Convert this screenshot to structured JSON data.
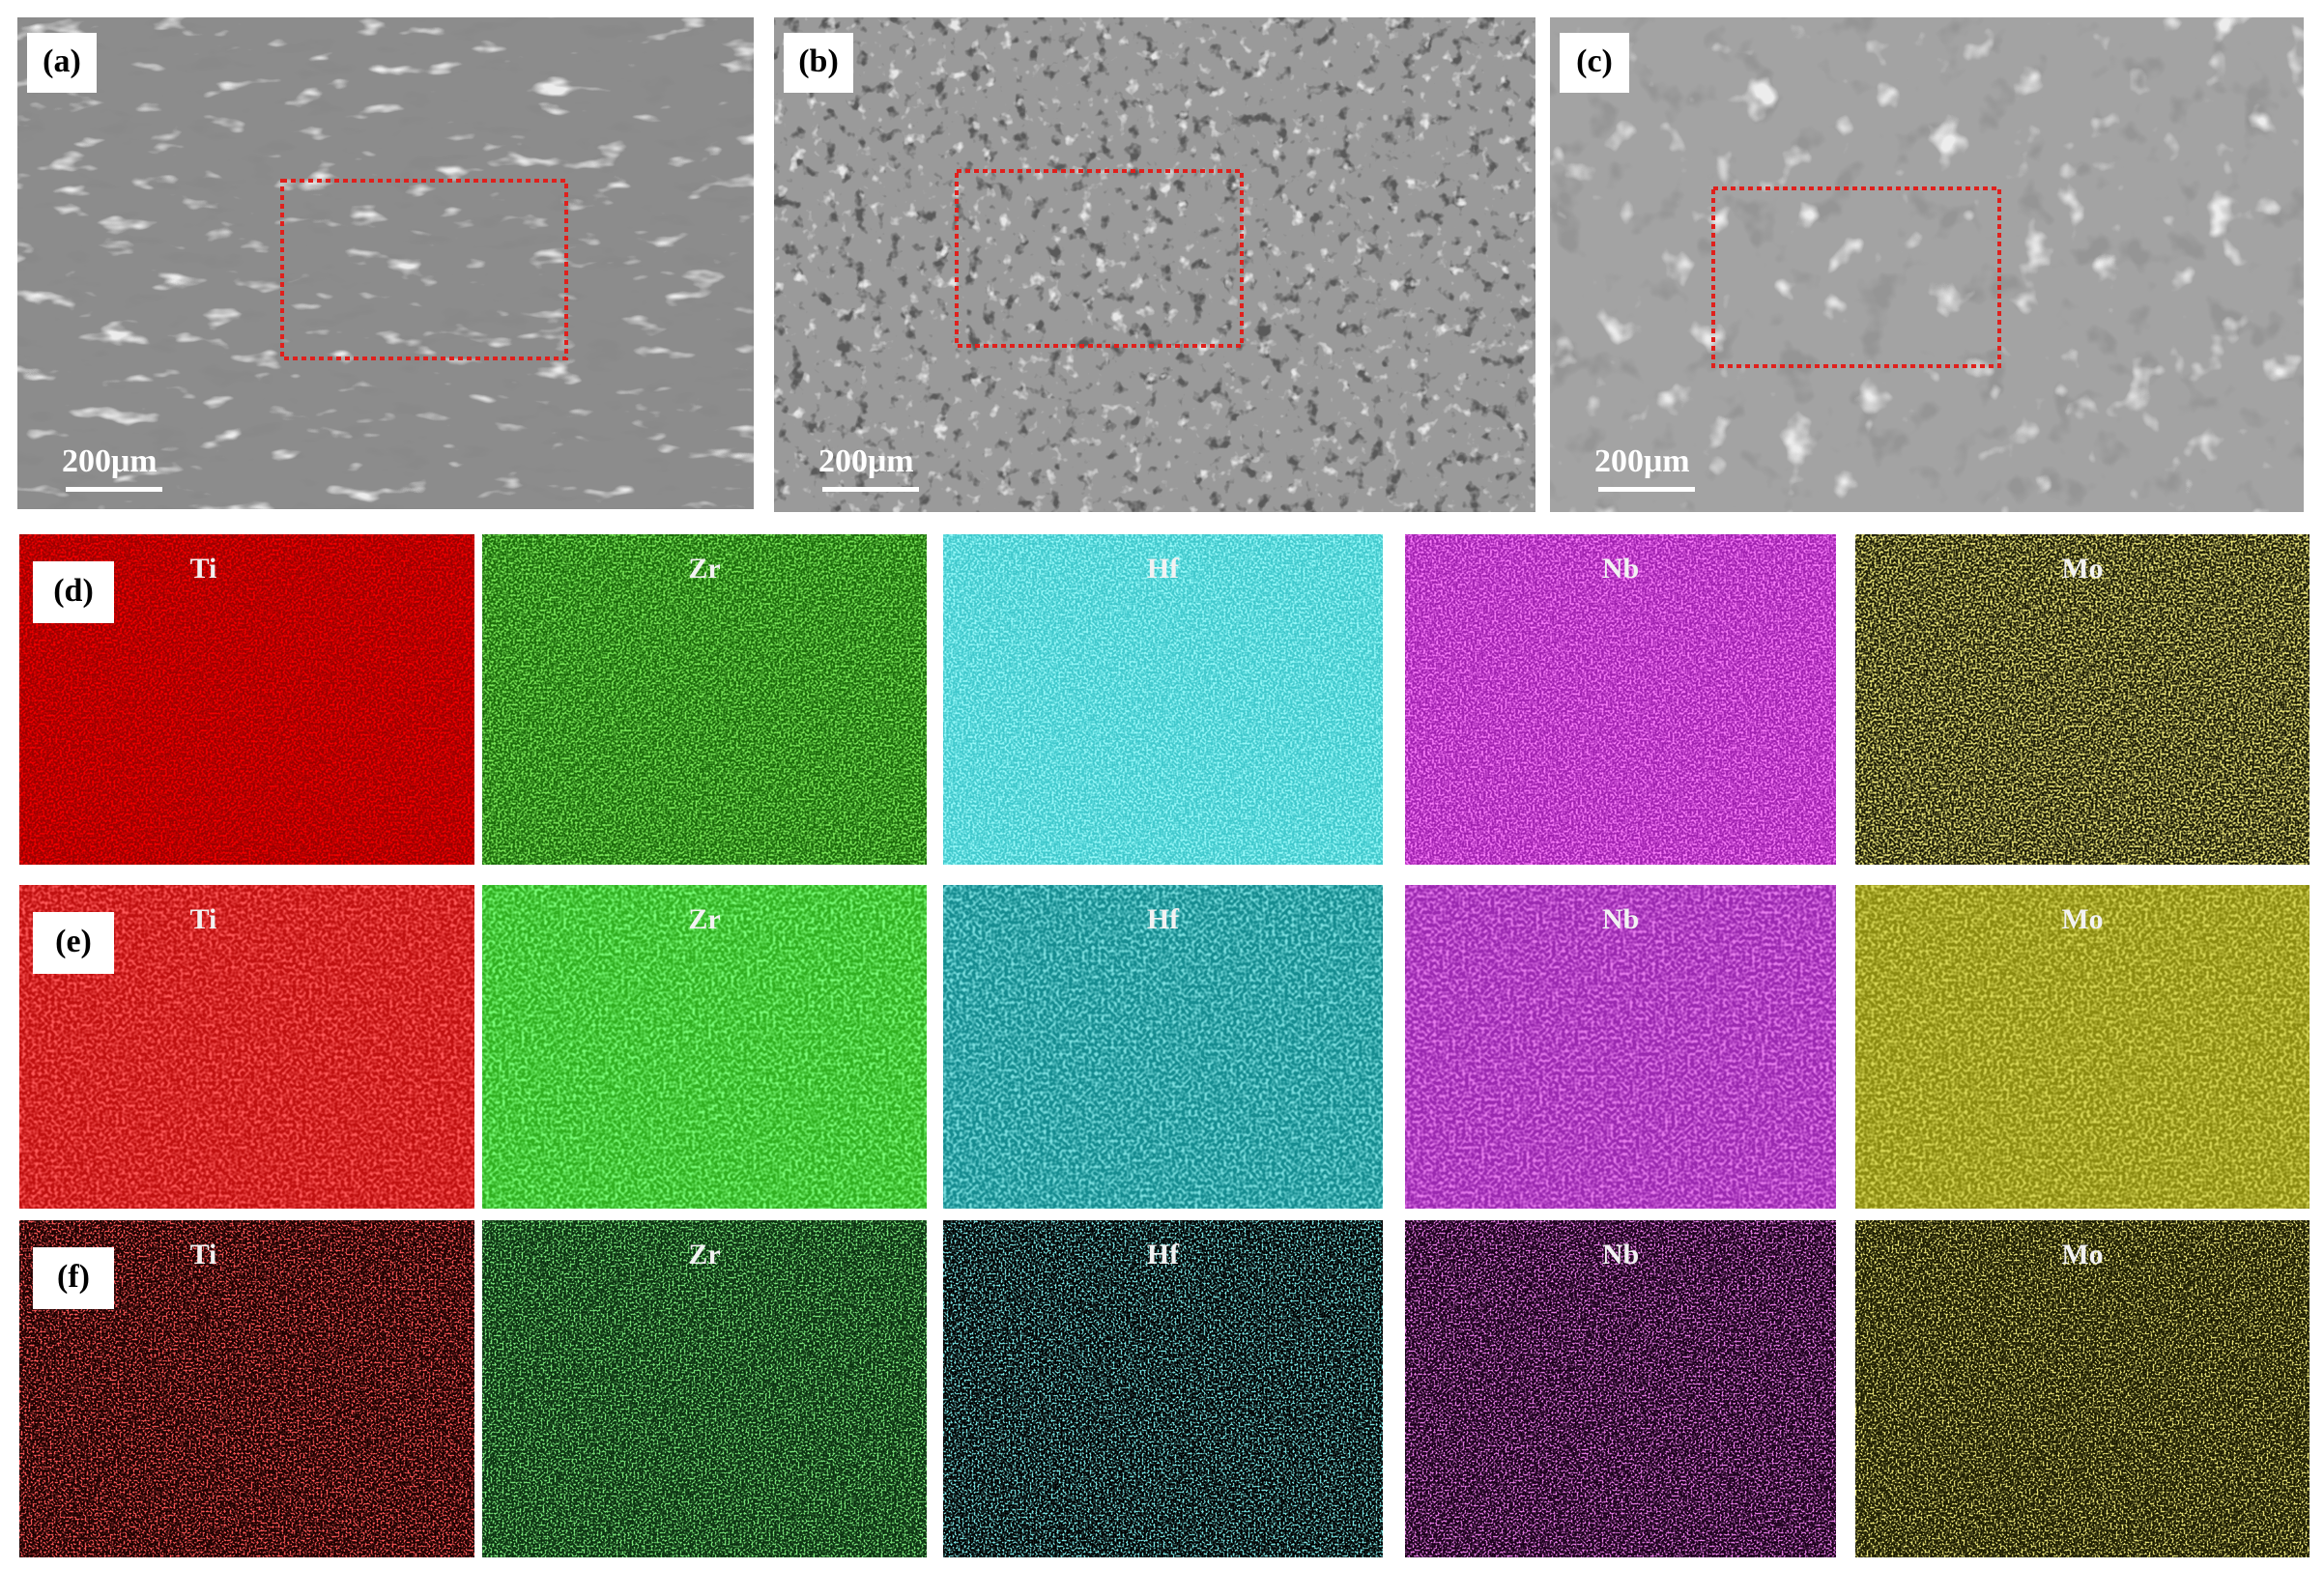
{
  "sem_panels": [
    {
      "label": "(a)",
      "scale_bar": "200μm"
    },
    {
      "label": "(b)",
      "scale_bar": "200μm"
    },
    {
      "label": "(c)",
      "scale_bar": "200μm"
    }
  ],
  "eds_rows": [
    {
      "label": "(d)",
      "maps": [
        "Ti",
        "Zr",
        "Hf",
        "Nb",
        "Mo"
      ]
    },
    {
      "label": "(e)",
      "maps": [
        "Ti",
        "Zr",
        "Hf",
        "Nb",
        "Mo"
      ]
    },
    {
      "label": "(f)",
      "maps": [
        "Ti",
        "Zr",
        "Hf",
        "Nb",
        "Mo"
      ]
    }
  ]
}
